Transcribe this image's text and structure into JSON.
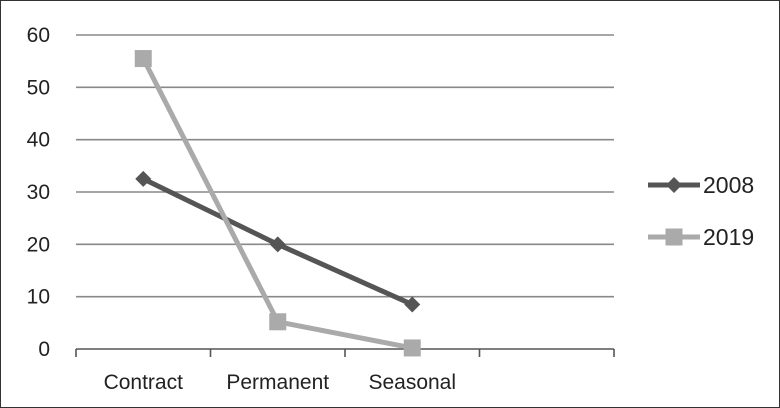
{
  "chart_data": {
    "type": "line",
    "title": "",
    "xlabel": "",
    "ylabel": "",
    "categories": [
      "Contract",
      "Permanent",
      "Seasonal"
    ],
    "ylim": [
      0,
      60
    ],
    "yticks": [
      "0",
      "10",
      "20",
      "30",
      "40",
      "50",
      "60"
    ],
    "grid": true,
    "legend_position": "right",
    "series": [
      {
        "name": "2008",
        "values": [
          32.5,
          20,
          8.5
        ],
        "color": "#555555",
        "marker": "diamond"
      },
      {
        "name": "2019",
        "values": [
          55.5,
          5.2,
          0.2
        ],
        "color": "#aaaaaa",
        "marker": "square"
      }
    ]
  }
}
